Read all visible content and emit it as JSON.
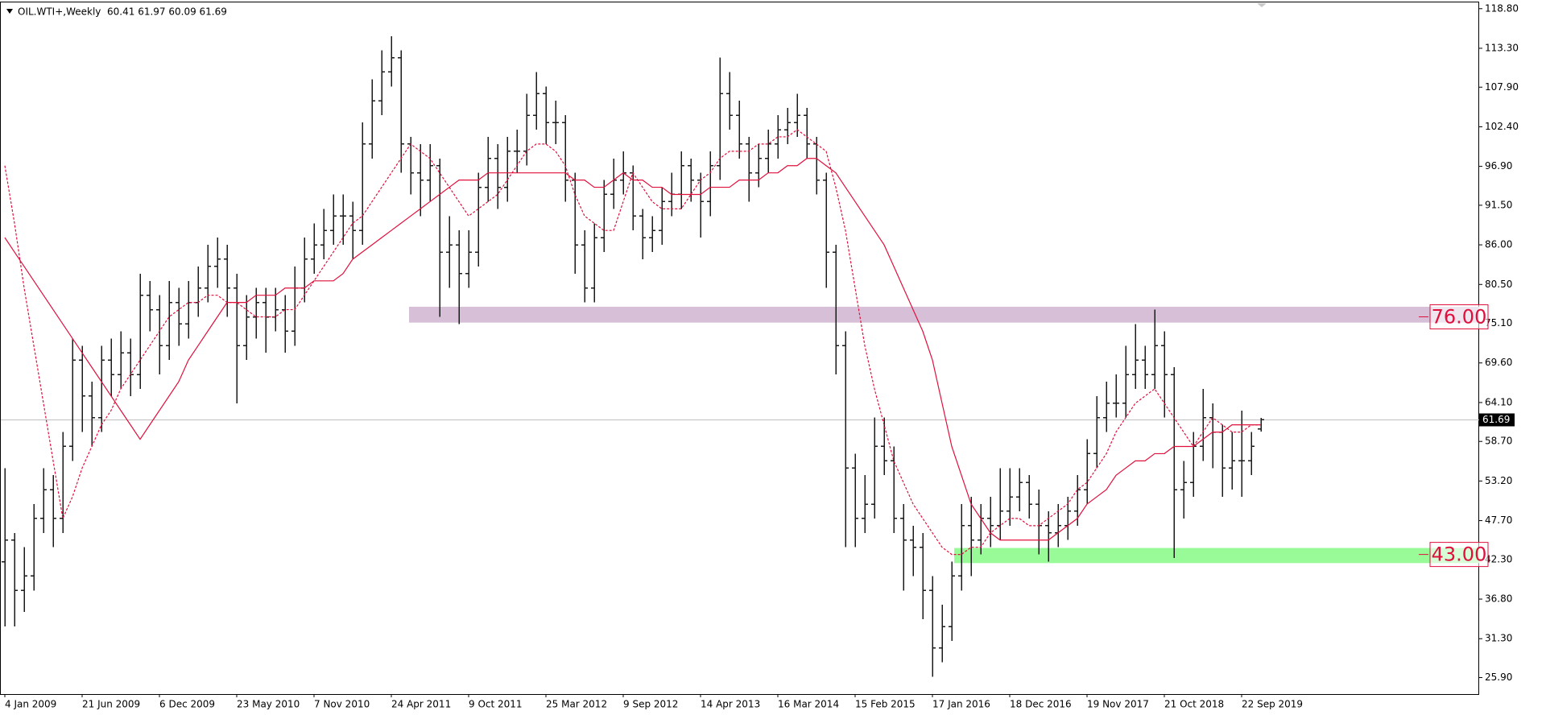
{
  "chart_data": {
    "type": "ohlc",
    "title": "OIL.WTI+,Weekly  60.41 61.97 60.09 61.69",
    "bar_color": "#1a1a1a",
    "grid": false,
    "ylim": [
      23.61,
      119.67
    ],
    "yticks": [
      {
        "value": 118.8,
        "label": "118.80"
      },
      {
        "value": 113.3,
        "label": "113.30"
      },
      {
        "value": 107.9,
        "label": "107.90"
      },
      {
        "value": 102.4,
        "label": "102.40"
      },
      {
        "value": 96.9,
        "label": "96.90"
      },
      {
        "value": 91.5,
        "label": "91.50"
      },
      {
        "value": 86,
        "label": "86.00"
      },
      {
        "value": 80.5,
        "label": "80.50"
      },
      {
        "value": 75.1,
        "label": "75.10"
      },
      {
        "value": 69.6,
        "label": "69.60"
      },
      {
        "value": 64.1,
        "label": "64.10"
      },
      {
        "value": 58.7,
        "label": "58.70"
      },
      {
        "value": 53.2,
        "label": "53.20"
      },
      {
        "value": 47.7,
        "label": "47.70"
      },
      {
        "value": 42.3,
        "label": "42.30"
      },
      {
        "value": 36.8,
        "label": "36.80"
      },
      {
        "value": 31.3,
        "label": "31.30"
      },
      {
        "value": 25.9,
        "label": "25.90"
      }
    ],
    "categories": [
      "4 Jan 2009",
      null,
      null,
      null,
      null,
      null,
      null,
      null,
      "21 Jun 2009",
      null,
      null,
      null,
      null,
      null,
      null,
      null,
      "6 Dec 2009",
      null,
      null,
      null,
      null,
      null,
      null,
      null,
      "23 May 2010",
      null,
      null,
      null,
      null,
      null,
      null,
      null,
      "7 Nov 2010",
      null,
      null,
      null,
      null,
      null,
      null,
      null,
      "24 Apr 2011",
      null,
      null,
      null,
      null,
      null,
      null,
      null,
      "9 Oct 2011",
      null,
      null,
      null,
      null,
      null,
      null,
      null,
      "25 Mar 2012",
      null,
      null,
      null,
      null,
      null,
      null,
      null,
      "9 Sep 2012",
      null,
      null,
      null,
      null,
      null,
      null,
      null,
      "14 Apr 2013",
      null,
      null,
      null,
      null,
      null,
      null,
      null,
      "16 Mar 2014",
      null,
      null,
      null,
      null,
      null,
      null,
      null,
      "15 Feb 2015",
      null,
      null,
      null,
      null,
      null,
      null,
      null,
      "17 Jan 2016",
      null,
      null,
      null,
      null,
      null,
      null,
      null,
      "18 Dec 2016",
      null,
      null,
      null,
      null,
      null,
      null,
      null,
      "19 Nov 2017",
      null,
      null,
      null,
      null,
      null,
      null,
      null,
      "21 Oct 2018",
      null,
      null,
      null,
      null,
      null,
      null,
      null,
      "22 Sep 2019",
      null,
      null
    ],
    "ohlc": [
      [
        42,
        55,
        33,
        45
      ],
      [
        45,
        46,
        33,
        38
      ],
      [
        38,
        44,
        35,
        40
      ],
      [
        40,
        50,
        38,
        48
      ],
      [
        48,
        55,
        46,
        52
      ],
      [
        52,
        54,
        44,
        48
      ],
      [
        48,
        60,
        46,
        58
      ],
      [
        58,
        73,
        56,
        70
      ],
      [
        70,
        72,
        60,
        65
      ],
      [
        65,
        67,
        58,
        62
      ],
      [
        62,
        72,
        60,
        70
      ],
      [
        70,
        73,
        65,
        68
      ],
      [
        68,
        74,
        66,
        71
      ],
      [
        71,
        73,
        65,
        68
      ],
      [
        68,
        82,
        66,
        79
      ],
      [
        79,
        81,
        74,
        77
      ],
      [
        77,
        79,
        68,
        72
      ],
      [
        72,
        81,
        70,
        78
      ],
      [
        78,
        80,
        72,
        75
      ],
      [
        75,
        81,
        73,
        78
      ],
      [
        78,
        83,
        76,
        80
      ],
      [
        80,
        86,
        78,
        83
      ],
      [
        83,
        87,
        80,
        84
      ],
      [
        84,
        86,
        76,
        80
      ],
      [
        80,
        82,
        64,
        72
      ],
      [
        72,
        79,
        70,
        76
      ],
      [
        76,
        80,
        73,
        78
      ],
      [
        78,
        80,
        71,
        76
      ],
      [
        76,
        80,
        74,
        77
      ],
      [
        77,
        79,
        71,
        74
      ],
      [
        74,
        83,
        72,
        80
      ],
      [
        80,
        87,
        78,
        84
      ],
      [
        84,
        89,
        82,
        86
      ],
      [
        86,
        91,
        84,
        88
      ],
      [
        88,
        93,
        86,
        90
      ],
      [
        90,
        93,
        86,
        90
      ],
      [
        90,
        92,
        84,
        88
      ],
      [
        88,
        103,
        86,
        100
      ],
      [
        100,
        109,
        98,
        106
      ],
      [
        106,
        113,
        104,
        110
      ],
      [
        110,
        115,
        108,
        112
      ],
      [
        112,
        113,
        96,
        100
      ],
      [
        100,
        101,
        93,
        96
      ],
      [
        96,
        100,
        90,
        95
      ],
      [
        95,
        100,
        92,
        97
      ],
      [
        97,
        98,
        76,
        85
      ],
      [
        85,
        90,
        80,
        86
      ],
      [
        86,
        88,
        75,
        82
      ],
      [
        82,
        88,
        80,
        85
      ],
      [
        85,
        96,
        83,
        94
      ],
      [
        94,
        101,
        92,
        98
      ],
      [
        98,
        100,
        91,
        94
      ],
      [
        94,
        101,
        92,
        99
      ],
      [
        99,
        102,
        96,
        99
      ],
      [
        99,
        107,
        97,
        104
      ],
      [
        104,
        110,
        102,
        107
      ],
      [
        107,
        108,
        100,
        103
      ],
      [
        103,
        106,
        100,
        103
      ],
      [
        103,
        104,
        92,
        95
      ],
      [
        95,
        96,
        82,
        86
      ],
      [
        86,
        88,
        78,
        80
      ],
      [
        80,
        89,
        78,
        87
      ],
      [
        87,
        95,
        85,
        93
      ],
      [
        93,
        98,
        91,
        95
      ],
      [
        95,
        99,
        93,
        96
      ],
      [
        96,
        97,
        88,
        90
      ],
      [
        90,
        91,
        84,
        87
      ],
      [
        87,
        90,
        85,
        88
      ],
      [
        88,
        94,
        86,
        92
      ],
      [
        92,
        96,
        90,
        93
      ],
      [
        93,
        99,
        91,
        97
      ],
      [
        97,
        98,
        92,
        95
      ],
      [
        95,
        96,
        87,
        92
      ],
      [
        92,
        99,
        90,
        97
      ],
      [
        97,
        112,
        95,
        107
      ],
      [
        107,
        110,
        102,
        104
      ],
      [
        104,
        106,
        98,
        100
      ],
      [
        100,
        101,
        92,
        96
      ],
      [
        96,
        100,
        94,
        98
      ],
      [
        98,
        102,
        96,
        100
      ],
      [
        100,
        104,
        98,
        102
      ],
      [
        102,
        105,
        100,
        103
      ],
      [
        103,
        107,
        101,
        104
      ],
      [
        104,
        105,
        98,
        100
      ],
      [
        100,
        101,
        93,
        95
      ],
      [
        95,
        96,
        80,
        85
      ],
      [
        85,
        86,
        68,
        72
      ],
      [
        72,
        74,
        44,
        55
      ],
      [
        55,
        57,
        44,
        48
      ],
      [
        48,
        54,
        46,
        50
      ],
      [
        50,
        62,
        48,
        58
      ],
      [
        58,
        62,
        54,
        56
      ],
      [
        56,
        58,
        46,
        48
      ],
      [
        48,
        50,
        38,
        45
      ],
      [
        45,
        47,
        40,
        44
      ],
      [
        44,
        46,
        34,
        38
      ],
      [
        38,
        40,
        26,
        30
      ],
      [
        30,
        36,
        28,
        33
      ],
      [
        33,
        42,
        31,
        40
      ],
      [
        40,
        50,
        38,
        47
      ],
      [
        47,
        51,
        40,
        45
      ],
      [
        45,
        50,
        43,
        48
      ],
      [
        48,
        51,
        44,
        47
      ],
      [
        47,
        55,
        45,
        49
      ],
      [
        49,
        55,
        47,
        51
      ],
      [
        51,
        55,
        49,
        53
      ],
      [
        53,
        54,
        48,
        50
      ],
      [
        50,
        52,
        43,
        47
      ],
      [
        47,
        49,
        42,
        46
      ],
      [
        46,
        50,
        44,
        47
      ],
      [
        47,
        51,
        45,
        49
      ],
      [
        49,
        54,
        47,
        52
      ],
      [
        52,
        59,
        50,
        57
      ],
      [
        57,
        65,
        55,
        62
      ],
      [
        62,
        67,
        60,
        64
      ],
      [
        64,
        68,
        62,
        64
      ],
      [
        64,
        72,
        62,
        68
      ],
      [
        68,
        75,
        66,
        70
      ],
      [
        70,
        72,
        66,
        68
      ],
      [
        68,
        77,
        66,
        72
      ],
      [
        72,
        74,
        62,
        68
      ],
      [
        68,
        69,
        42.5,
        52
      ],
      [
        52,
        56,
        48,
        53
      ],
      [
        53,
        60,
        51,
        58
      ],
      [
        58,
        66,
        56,
        62
      ],
      [
        62,
        64,
        55,
        60
      ],
      [
        60,
        61,
        51,
        55
      ],
      [
        55,
        60,
        52,
        56
      ],
      [
        56,
        63,
        51,
        56
      ],
      [
        56,
        60,
        54,
        58
      ],
      [
        60.41,
        61.97,
        60.09,
        61.69
      ]
    ],
    "moving_averages": [
      {
        "color": "#e0103c",
        "dash": false,
        "values": [
          87,
          85,
          83,
          81,
          79,
          77,
          75,
          73,
          71,
          69,
          67,
          65,
          63,
          61,
          59,
          61,
          63,
          65,
          67,
          70,
          72,
          74,
          76,
          78,
          78,
          78,
          79,
          79,
          79,
          80,
          80,
          80,
          81,
          81,
          81,
          82,
          84,
          85,
          86,
          87,
          88,
          89,
          90,
          91,
          92,
          93,
          94,
          95,
          95,
          95,
          96,
          96,
          96,
          96,
          96,
          96,
          96,
          96,
          96,
          95,
          95,
          94,
          94,
          95,
          96,
          95,
          95,
          94,
          94,
          93,
          93,
          93,
          93,
          94,
          94,
          94,
          95,
          95,
          95,
          96,
          96,
          97,
          97,
          98,
          98,
          97,
          96,
          94,
          92,
          90,
          88,
          86,
          83,
          80,
          77,
          74,
          70,
          64,
          58,
          54,
          50,
          48,
          46,
          45,
          45,
          45,
          45,
          45,
          45,
          46,
          47,
          48,
          50,
          51,
          52,
          54,
          55,
          56,
          56,
          57,
          57,
          58,
          58,
          58,
          59,
          60,
          60,
          61,
          61,
          61,
          61
        ]
      },
      {
        "color": "#e0103c",
        "dash": true,
        "values": [
          97,
          89,
          80,
          72,
          64,
          56,
          48,
          51,
          55,
          58,
          61,
          63,
          66,
          68,
          70,
          72,
          74,
          76,
          77,
          78,
          78,
          79,
          79,
          78,
          78,
          77,
          76,
          76,
          76,
          77,
          77,
          79,
          81,
          83,
          85,
          87,
          89,
          90,
          92,
          94,
          96,
          98,
          100,
          99,
          98,
          96,
          94,
          92,
          90,
          91,
          92,
          93,
          95,
          97,
          99,
          100,
          100,
          99,
          97,
          93,
          90,
          89,
          88,
          88,
          92,
          96,
          94,
          92,
          91,
          91,
          91,
          93,
          95,
          96,
          98,
          99,
          99,
          99,
          100,
          100,
          101,
          101,
          102,
          101,
          100,
          99,
          94,
          88,
          80,
          72,
          66,
          61,
          56,
          53,
          50,
          48,
          46,
          44,
          43,
          43,
          44,
          44,
          46,
          47,
          48,
          48,
          47,
          47,
          48,
          49,
          50,
          52,
          53,
          55,
          57,
          60,
          62,
          64,
          65,
          66,
          64,
          62,
          60,
          58,
          60,
          62,
          61,
          60,
          60,
          61,
          61
        ]
      }
    ],
    "levels": [
      {
        "value": 76,
        "label": "76.00",
        "color": "#d8bfd8",
        "band": [
          75.2,
          77.4
        ]
      },
      {
        "value": 43,
        "label": "43.00",
        "color": "#98fb98",
        "band": [
          41.8,
          43.9
        ]
      }
    ],
    "last_price": {
      "value": 61.69,
      "label": "61.69"
    }
  }
}
